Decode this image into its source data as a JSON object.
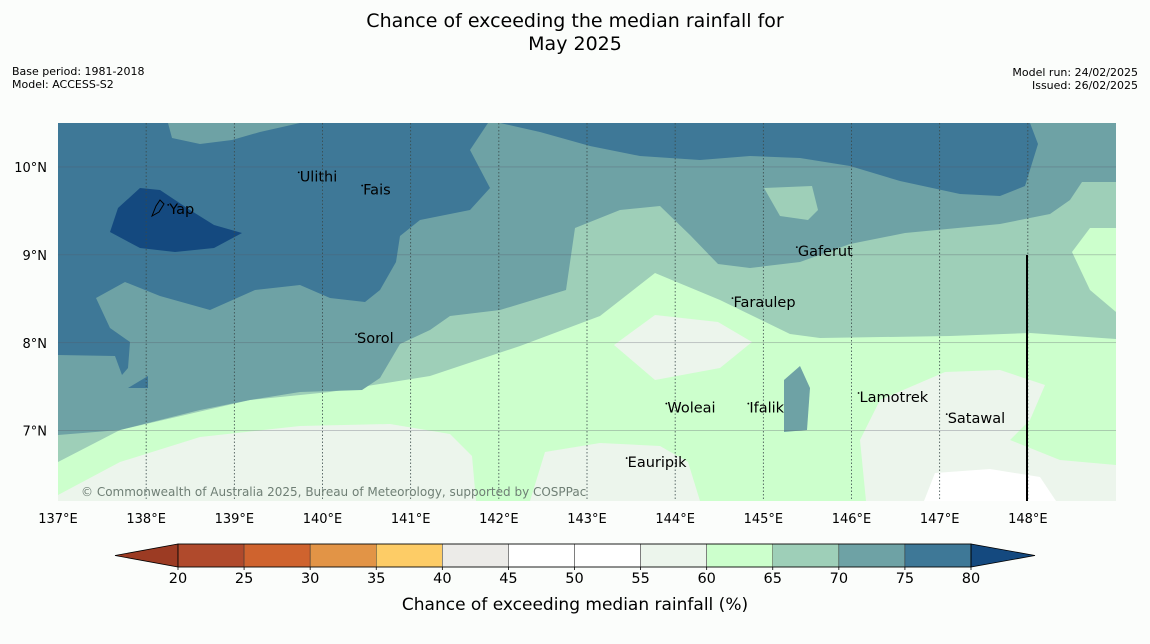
{
  "title": {
    "line1": "Chance of exceeding the median rainfall for",
    "line2": "May 2025"
  },
  "meta": {
    "base_period": "Base period: 1981-2018",
    "model": "Model: ACCESS-S2",
    "model_run": "Model run: 24/02/2025",
    "issued": "Issued: 26/02/2025"
  },
  "map": {
    "lon_range": [
      137,
      149
    ],
    "lat_range": [
      6.2,
      10.5
    ],
    "x_ticks": [
      "137°E",
      "138°E",
      "139°E",
      "140°E",
      "141°E",
      "142°E",
      "143°E",
      "144°E",
      "145°E",
      "146°E",
      "147°E",
      "148°E"
    ],
    "y_ticks": [
      "10°N",
      "9°N",
      "8°N",
      "7°N"
    ],
    "copyright": "© Commonwealth of Australia 2025, Bureau of Meteorology, supported by COSPPac",
    "places": [
      {
        "name": "Yap",
        "lon": 138.25,
        "lat": 9.5
      },
      {
        "name": "Ulithi",
        "lon": 139.73,
        "lat": 9.87
      },
      {
        "name": "Fais",
        "lon": 140.45,
        "lat": 9.72
      },
      {
        "name": "Gaferut",
        "lon": 145.38,
        "lat": 9.02
      },
      {
        "name": "Faraulep",
        "lon": 144.65,
        "lat": 8.44
      },
      {
        "name": "Sorol",
        "lon": 140.38,
        "lat": 8.03
      },
      {
        "name": "Woleai",
        "lon": 143.9,
        "lat": 7.24
      },
      {
        "name": "Ifalik",
        "lon": 144.83,
        "lat": 7.24
      },
      {
        "name": "Lamotrek",
        "lon": 146.08,
        "lat": 7.36
      },
      {
        "name": "Satawal",
        "lon": 147.08,
        "lat": 7.12
      },
      {
        "name": "Eauripik",
        "lon": 143.45,
        "lat": 6.62
      }
    ]
  },
  "colorbar": {
    "ticks": [
      "20",
      "25",
      "30",
      "35",
      "40",
      "45",
      "50",
      "55",
      "60",
      "65",
      "70",
      "75",
      "80"
    ],
    "colors": [
      "#b04a2c",
      "#cf632e",
      "#e29446",
      "#fdcc66",
      "#ecebe8",
      "#ffffff",
      "#ffffff",
      "#ecf5ec",
      "#ccffcc",
      "#9ecfb8",
      "#6ea2a5",
      "#3e7897"
    ],
    "below_color": "#9c3b23",
    "above_color": "#14497f",
    "label": "Chance of exceeding median rainfall (%)"
  }
}
